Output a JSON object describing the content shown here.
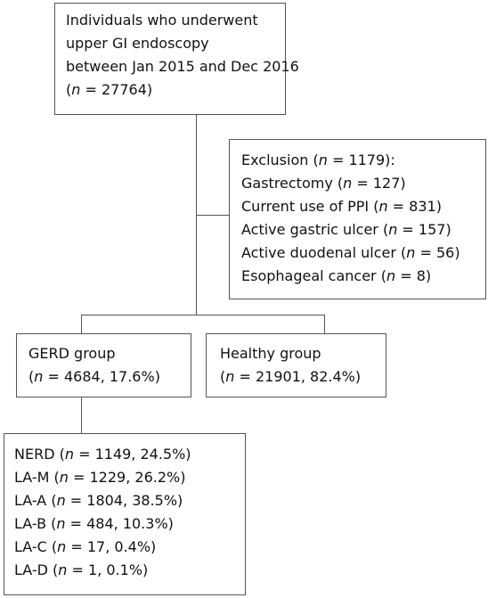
{
  "boxes": {
    "start": {
      "lines": [
        "Individuals who underwent",
        "upper GI endoscopy",
        "between Jan 2015 and Dec 2016"
      ],
      "n_pre": "(",
      "n_var": "n",
      "n_post": " = 27764)"
    },
    "exclusion": {
      "title_pre": "Exclusion (",
      "title_var": "n",
      "title_post": " = 1179):",
      "items": [
        {
          "pre": "Gastrectomy (",
          "var": "n",
          "post": " = 127)"
        },
        {
          "pre": "Current use of PPI (",
          "var": "n",
          "post": " = 831)"
        },
        {
          "pre": "Active gastric ulcer (",
          "var": "n",
          "post": " = 157)"
        },
        {
          "pre": "Active duodenal ulcer (",
          "var": "n",
          "post": " = 56)"
        },
        {
          "pre": "Esophageal cancer (",
          "var": "n",
          "post": " = 8)"
        }
      ]
    },
    "gerd": {
      "title": "GERD group",
      "n_pre": "(",
      "n_var": "n",
      "n_post": " = 4684, 17.6%)"
    },
    "healthy": {
      "title": "Healthy group",
      "n_pre": "(",
      "n_var": "n",
      "n_post": " = 21901, 82.4%)"
    },
    "subgroups": {
      "items": [
        {
          "pre": "NERD (",
          "var": "n",
          "post": " = 1149, 24.5%)"
        },
        {
          "pre": "LA-M (",
          "var": "n",
          "post": " = 1229, 26.2%)"
        },
        {
          "pre": "LA-A (",
          "var": "n",
          "post": " = 1804, 38.5%)"
        },
        {
          "pre": "LA-B (",
          "var": "n",
          "post": " = 484, 10.3%)"
        },
        {
          "pre": "LA-C (",
          "var": "n",
          "post": " = 17, 0.4%)"
        },
        {
          "pre": "LA-D (",
          "var": "n",
          "post": " = 1, 0.1%)"
        }
      ]
    }
  }
}
